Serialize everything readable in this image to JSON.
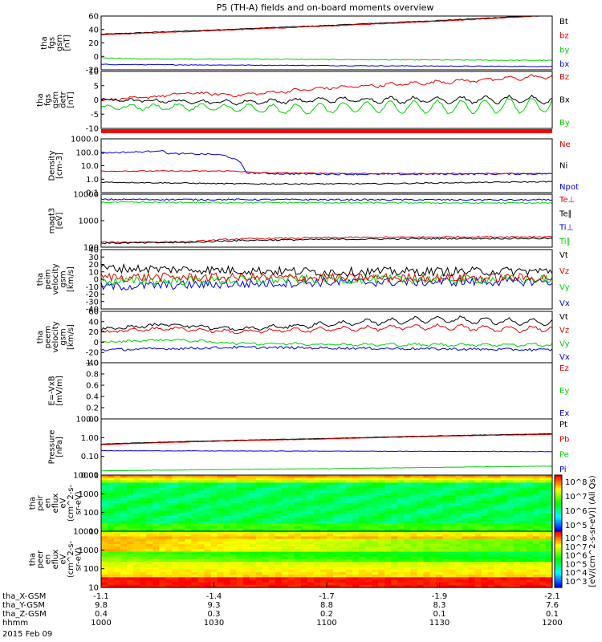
{
  "title": "P5 (TH-A) fields and on-board moments overview",
  "date_label": "2015 Feb 09",
  "colors": {
    "black": "#000000",
    "red": "#e00000",
    "green": "#00d000",
    "blue": "#0000e0",
    "frame": "#000000"
  },
  "panels": [
    {
      "id": "p1",
      "ylabel": [
        "tha",
        "fgs",
        "gsm",
        "[nT]"
      ],
      "yticks": [
        "60",
        "40",
        "20",
        "0",
        "-20"
      ],
      "ylim": [
        -20,
        60
      ],
      "scale": "linear",
      "legend": [
        {
          "label": "Bt",
          "color": "#000000"
        },
        {
          "label": "bz",
          "color": "#e00000"
        },
        {
          "label": "by",
          "color": "#00d000"
        },
        {
          "label": "bx",
          "color": "#0000e0"
        }
      ],
      "series": [
        {
          "name": "Bt",
          "color": "#000000",
          "pts": [
            [
              0,
              33
            ],
            [
              0.2,
              38
            ],
            [
              0.5,
              46
            ],
            [
              0.8,
              55
            ],
            [
              1,
              62
            ]
          ],
          "noise": 0.5,
          "osc": 0
        },
        {
          "name": "bz",
          "color": "#e00000",
          "pts": [
            [
              0,
              32
            ],
            [
              0.2,
              37
            ],
            [
              0.5,
              45
            ],
            [
              0.8,
              54
            ],
            [
              1,
              61
            ]
          ],
          "noise": 0.5,
          "osc": 0
        },
        {
          "name": "by",
          "color": "#00d000",
          "pts": [
            [
              0,
              -2
            ],
            [
              0.05,
              -3
            ],
            [
              0.1,
              -4
            ],
            [
              0.3,
              -4
            ],
            [
              0.6,
              -5
            ],
            [
              1,
              -6
            ]
          ],
          "noise": 0.6,
          "osc": 0
        },
        {
          "name": "bx",
          "color": "#0000e0",
          "pts": [
            [
              0,
              -12
            ],
            [
              0.3,
              -13
            ],
            [
              0.6,
              -14
            ],
            [
              1,
              -15
            ]
          ],
          "noise": 0.5,
          "osc": 0
        }
      ]
    },
    {
      "id": "p2",
      "ylabel": [
        "tha",
        "fgs",
        "gsm",
        "detr",
        "[nT]"
      ],
      "yticks": [
        "10",
        "5",
        "0",
        "-5",
        "-10"
      ],
      "ylim": [
        -13,
        11
      ],
      "scale": "linear",
      "legend": [
        {
          "label": "Bz",
          "color": "#e00000"
        },
        {
          "label": "Bx",
          "color": "#000000"
        },
        {
          "label": "By",
          "color": "#00d000"
        }
      ],
      "series": [
        {
          "name": "Bz",
          "color": "#e00000",
          "pts": [
            [
              0,
              -1
            ],
            [
              0.1,
              0
            ],
            [
              0.2,
              2
            ],
            [
              0.3,
              1
            ],
            [
              0.5,
              4
            ],
            [
              0.7,
              6
            ],
            [
              0.9,
              8
            ],
            [
              1,
              9
            ]
          ],
          "noise": 0.5,
          "osc": 0.6
        },
        {
          "name": "Bx",
          "color": "#000000",
          "pts": [
            [
              0,
              -1
            ],
            [
              0.3,
              -2
            ],
            [
              0.5,
              -1
            ],
            [
              0.8,
              -1
            ],
            [
              1,
              -1
            ]
          ],
          "noise": 0.5,
          "osc": 1.2
        },
        {
          "name": "By",
          "color": "#00d000",
          "pts": [
            [
              0,
              -4
            ],
            [
              0.2,
              -4
            ],
            [
              0.4,
              -5
            ],
            [
              0.6,
              -4
            ],
            [
              0.8,
              -4
            ],
            [
              1,
              -3
            ]
          ],
          "noise": 0.5,
          "osc": 2.5
        }
      ]
    },
    {
      "id": "p3",
      "ylabel": [
        "Density",
        "[cm-3]"
      ],
      "yticks": [
        "1000.0",
        "100.0",
        "10.0",
        "1.0",
        "0.1"
      ],
      "ylim": [
        0.1,
        1000
      ],
      "scale": "log",
      "legend": [
        {
          "label": "Ne",
          "color": "#e00000"
        },
        {
          "label": "Ni",
          "color": "#000000"
        },
        {
          "label": "Npot",
          "color": "#0000e0"
        }
      ],
      "series": [
        {
          "name": "Npot",
          "color": "#0000e0",
          "pts": [
            [
              0,
              90
            ],
            [
              0.1,
              110
            ],
            [
              0.13,
              140
            ],
            [
              0.15,
              80
            ],
            [
              0.25,
              70
            ],
            [
              0.27,
              60
            ],
            [
              0.32,
              3
            ],
            [
              0.4,
              2.5
            ],
            [
              0.6,
              2.3
            ],
            [
              1,
              2.5
            ]
          ],
          "noise": 0.03,
          "osc": 0
        },
        {
          "name": "Ne",
          "color": "#e00000",
          "pts": [
            [
              0,
              4
            ],
            [
              0.3,
              4
            ],
            [
              0.34,
              3
            ],
            [
              0.6,
              2.6
            ],
            [
              1,
              2.6
            ]
          ],
          "noise": 0.02,
          "osc": 0
        },
        {
          "name": "Ni",
          "color": "#000000",
          "pts": [
            [
              0,
              0.6
            ],
            [
              0.3,
              0.45
            ],
            [
              0.6,
              0.45
            ],
            [
              1,
              0.65
            ]
          ],
          "noise": 0.02,
          "osc": 0
        }
      ]
    },
    {
      "id": "p4",
      "ylabel": [
        "magt3",
        "[eV]"
      ],
      "yticks": [
        "10000",
        "1000",
        "100"
      ],
      "ylim": [
        15,
        12000
      ],
      "scale": "log",
      "legend": [
        {
          "label": "Te⊥",
          "color": "#e00000"
        },
        {
          "label": "Te∥",
          "color": "#000000"
        },
        {
          "label": "Ti⊥",
          "color": "#0000e0"
        },
        {
          "label": "Ti∥",
          "color": "#00d000"
        }
      ],
      "series": [
        {
          "name": "Ti⊥",
          "color": "#0000e0",
          "pts": [
            [
              0,
              6200
            ],
            [
              0.5,
              6000
            ],
            [
              1,
              5800
            ]
          ],
          "noise": 0.02,
          "osc": 0
        },
        {
          "name": "Ti∥",
          "color": "#00d000",
          "pts": [
            [
              0,
              4300
            ],
            [
              0.5,
              4100
            ],
            [
              1,
              3900
            ]
          ],
          "noise": 0.02,
          "osc": 0
        },
        {
          "name": "Te⊥",
          "color": "#e00000",
          "pts": [
            [
              0,
              28
            ],
            [
              0.2,
              30
            ],
            [
              0.3,
              42
            ],
            [
              0.5,
              50
            ],
            [
              0.8,
              55
            ],
            [
              1,
              56
            ]
          ],
          "noise": 0.02,
          "osc": 0
        },
        {
          "name": "Te∥",
          "color": "#000000",
          "pts": [
            [
              0,
              25
            ],
            [
              0.2,
              27
            ],
            [
              0.3,
              35
            ],
            [
              0.5,
              40
            ],
            [
              0.8,
              45
            ],
            [
              1,
              45
            ]
          ],
          "noise": 0.02,
          "osc": 0
        }
      ]
    },
    {
      "id": "p5",
      "ylabel": [
        "tha",
        "peim",
        "velocity",
        "gsm",
        "[km/s]"
      ],
      "yticks": [
        "40",
        "30",
        "20",
        "10",
        "0",
        "-10",
        "-20",
        "-30",
        "-40"
      ],
      "ylim": [
        -40,
        40
      ],
      "scale": "linear",
      "legend": [
        {
          "label": "Vt",
          "color": "#000000"
        },
        {
          "label": "Vz",
          "color": "#e00000"
        },
        {
          "label": "Vy",
          "color": "#00d000"
        },
        {
          "label": "Vx",
          "color": "#0000e0"
        }
      ],
      "series": [
        {
          "name": "Vx",
          "color": "#0000e0",
          "pts": [
            [
              0,
              -10
            ],
            [
              0.5,
              -4
            ],
            [
              1,
              -3
            ]
          ],
          "noise": 6,
          "osc": 0
        },
        {
          "name": "Vy",
          "color": "#00d000",
          "pts": [
            [
              0,
              -3
            ],
            [
              0.5,
              0
            ],
            [
              1,
              0
            ]
          ],
          "noise": 6,
          "osc": 0
        },
        {
          "name": "Vz",
          "color": "#e00000",
          "pts": [
            [
              0,
              3
            ],
            [
              0.5,
              2
            ],
            [
              1,
              2
            ]
          ],
          "noise": 6,
          "osc": 0
        },
        {
          "name": "Vt",
          "color": "#000000",
          "pts": [
            [
              0,
              15
            ],
            [
              0.5,
              10
            ],
            [
              1,
              11
            ]
          ],
          "noise": 6,
          "osc": 0
        }
      ]
    },
    {
      "id": "p6",
      "ylabel": [
        "tha",
        "peem",
        "velocity",
        "gsm",
        "[km/s]"
      ],
      "yticks": [
        "60",
        "40",
        "20",
        "0",
        "-20",
        "-40"
      ],
      "ylim": [
        -40,
        60
      ],
      "scale": "linear",
      "legend": [
        {
          "label": "Vt",
          "color": "#000000"
        },
        {
          "label": "Vz",
          "color": "#e00000"
        },
        {
          "label": "Vy",
          "color": "#00d000"
        },
        {
          "label": "Vx",
          "color": "#0000e0"
        }
      ],
      "series": [
        {
          "name": "Vx",
          "color": "#0000e0",
          "pts": [
            [
              0,
              -15
            ],
            [
              0.3,
              -10
            ],
            [
              0.6,
              -12
            ],
            [
              1,
              -15
            ]
          ],
          "noise": 2.5,
          "osc": 0
        },
        {
          "name": "Vy",
          "color": "#00d000",
          "pts": [
            [
              0,
              0
            ],
            [
              0.15,
              5
            ],
            [
              0.3,
              -2
            ],
            [
              0.6,
              -5
            ],
            [
              1,
              -5
            ]
          ],
          "noise": 2,
          "osc": 2
        },
        {
          "name": "Vz",
          "color": "#e00000",
          "pts": [
            [
              0,
              20
            ],
            [
              0.15,
              27
            ],
            [
              0.3,
              20
            ],
            [
              0.5,
              25
            ],
            [
              0.75,
              30
            ],
            [
              0.9,
              25
            ],
            [
              1,
              27
            ]
          ],
          "noise": 2.5,
          "osc": 4
        },
        {
          "name": "Vt",
          "color": "#000000",
          "pts": [
            [
              0,
              25
            ],
            [
              0.15,
              35
            ],
            [
              0.3,
              25
            ],
            [
              0.5,
              35
            ],
            [
              0.75,
              45
            ],
            [
              0.9,
              40
            ],
            [
              1,
              38
            ]
          ],
          "noise": 2.5,
          "osc": 5
        }
      ]
    },
    {
      "id": "p7",
      "ylabel": [
        "E=-VxB",
        "[mV/m]"
      ],
      "yticks": [
        "1.0",
        "0.8",
        "0.6",
        "0.4",
        "0.2",
        "0.0"
      ],
      "ylim": [
        0,
        1
      ],
      "scale": "linear",
      "legend": [
        {
          "label": "Ez",
          "color": "#e00000"
        },
        {
          "label": "Ey",
          "color": "#00d000"
        },
        {
          "label": "Ex",
          "color": "#0000e0"
        }
      ],
      "series": []
    },
    {
      "id": "p8",
      "ylabel": [
        "Pressure",
        "[nPa]"
      ],
      "yticks": [
        "10.00",
        "1.00",
        "0.10",
        "0.01"
      ],
      "ylim": [
        0.01,
        10
      ],
      "scale": "log",
      "legend": [
        {
          "label": "Pt",
          "color": "#000000"
        },
        {
          "label": "Pb",
          "color": "#e00000"
        },
        {
          "label": "Pe",
          "color": "#00d000"
        },
        {
          "label": "Pi",
          "color": "#0000e0"
        }
      ],
      "series": [
        {
          "name": "Pt",
          "color": "#000000",
          "pts": [
            [
              0,
              0.45
            ],
            [
              0.5,
              0.9
            ],
            [
              1,
              1.6
            ]
          ],
          "noise": 0.005,
          "osc": 0
        },
        {
          "name": "Pb",
          "color": "#e00000",
          "pts": [
            [
              0,
              0.42
            ],
            [
              0.5,
              0.85
            ],
            [
              1,
              1.5
            ]
          ],
          "noise": 0.005,
          "osc": 0
        },
        {
          "name": "Pi",
          "color": "#0000e0",
          "pts": [
            [
              0,
              0.2
            ],
            [
              0.5,
              0.19
            ],
            [
              1,
              0.18
            ]
          ],
          "noise": 0.005,
          "osc": 0
        },
        {
          "name": "Pe",
          "color": "#00d000",
          "pts": [
            [
              0,
              0.017
            ],
            [
              0.5,
              0.022
            ],
            [
              1,
              0.03
            ]
          ],
          "noise": 0.005,
          "osc": 0
        }
      ]
    },
    {
      "id": "p9",
      "ylabel": [
        "tha",
        "peir",
        "en",
        "eflux",
        "eV",
        "(cm^2-s-",
        "sr-eV)"
      ],
      "yticks": [
        "10000",
        "1000",
        "100",
        "10"
      ],
      "ylim": [
        5,
        25000
      ],
      "scale": "log",
      "spectrogram": "ion"
    },
    {
      "id": "p10",
      "ylabel": [
        "tha",
        "peer",
        "en",
        "eflux",
        "eV",
        "(cm^2-s-",
        "sr-eV)"
      ],
      "yticks": [
        "10000",
        "1000",
        "100",
        "10"
      ],
      "ylim": [
        5,
        25000
      ],
      "scale": "log",
      "spectrogram": "electron"
    }
  ],
  "colorbar": {
    "label": "[eV/(cm^2-s-sr-eV)] (All Qs)",
    "ticks_upper": [
      "10^8",
      "10^7",
      "10^6",
      "10^5"
    ],
    "ticks_lower": [
      "10^8",
      "10^7",
      "10^6",
      "10^5",
      "10^4",
      "10^3"
    ]
  },
  "xaxis": {
    "rows": [
      {
        "label": "tha_X-GSM",
        "values": [
          "-1.1",
          "-1.4",
          "-1.7",
          "-1.9",
          "-2.1"
        ]
      },
      {
        "label": "tha_Y-GSM",
        "values": [
          "9.8",
          "9.3",
          "8.8",
          "8.3",
          "7.6"
        ]
      },
      {
        "label": "tha_Z-GSM",
        "values": [
          "0.4",
          "0.3",
          "0.2",
          "0.1",
          "0.1"
        ]
      },
      {
        "label": "hhmm",
        "values": [
          "1000",
          "1030",
          "1100",
          "1130",
          "1200"
        ]
      }
    ]
  }
}
